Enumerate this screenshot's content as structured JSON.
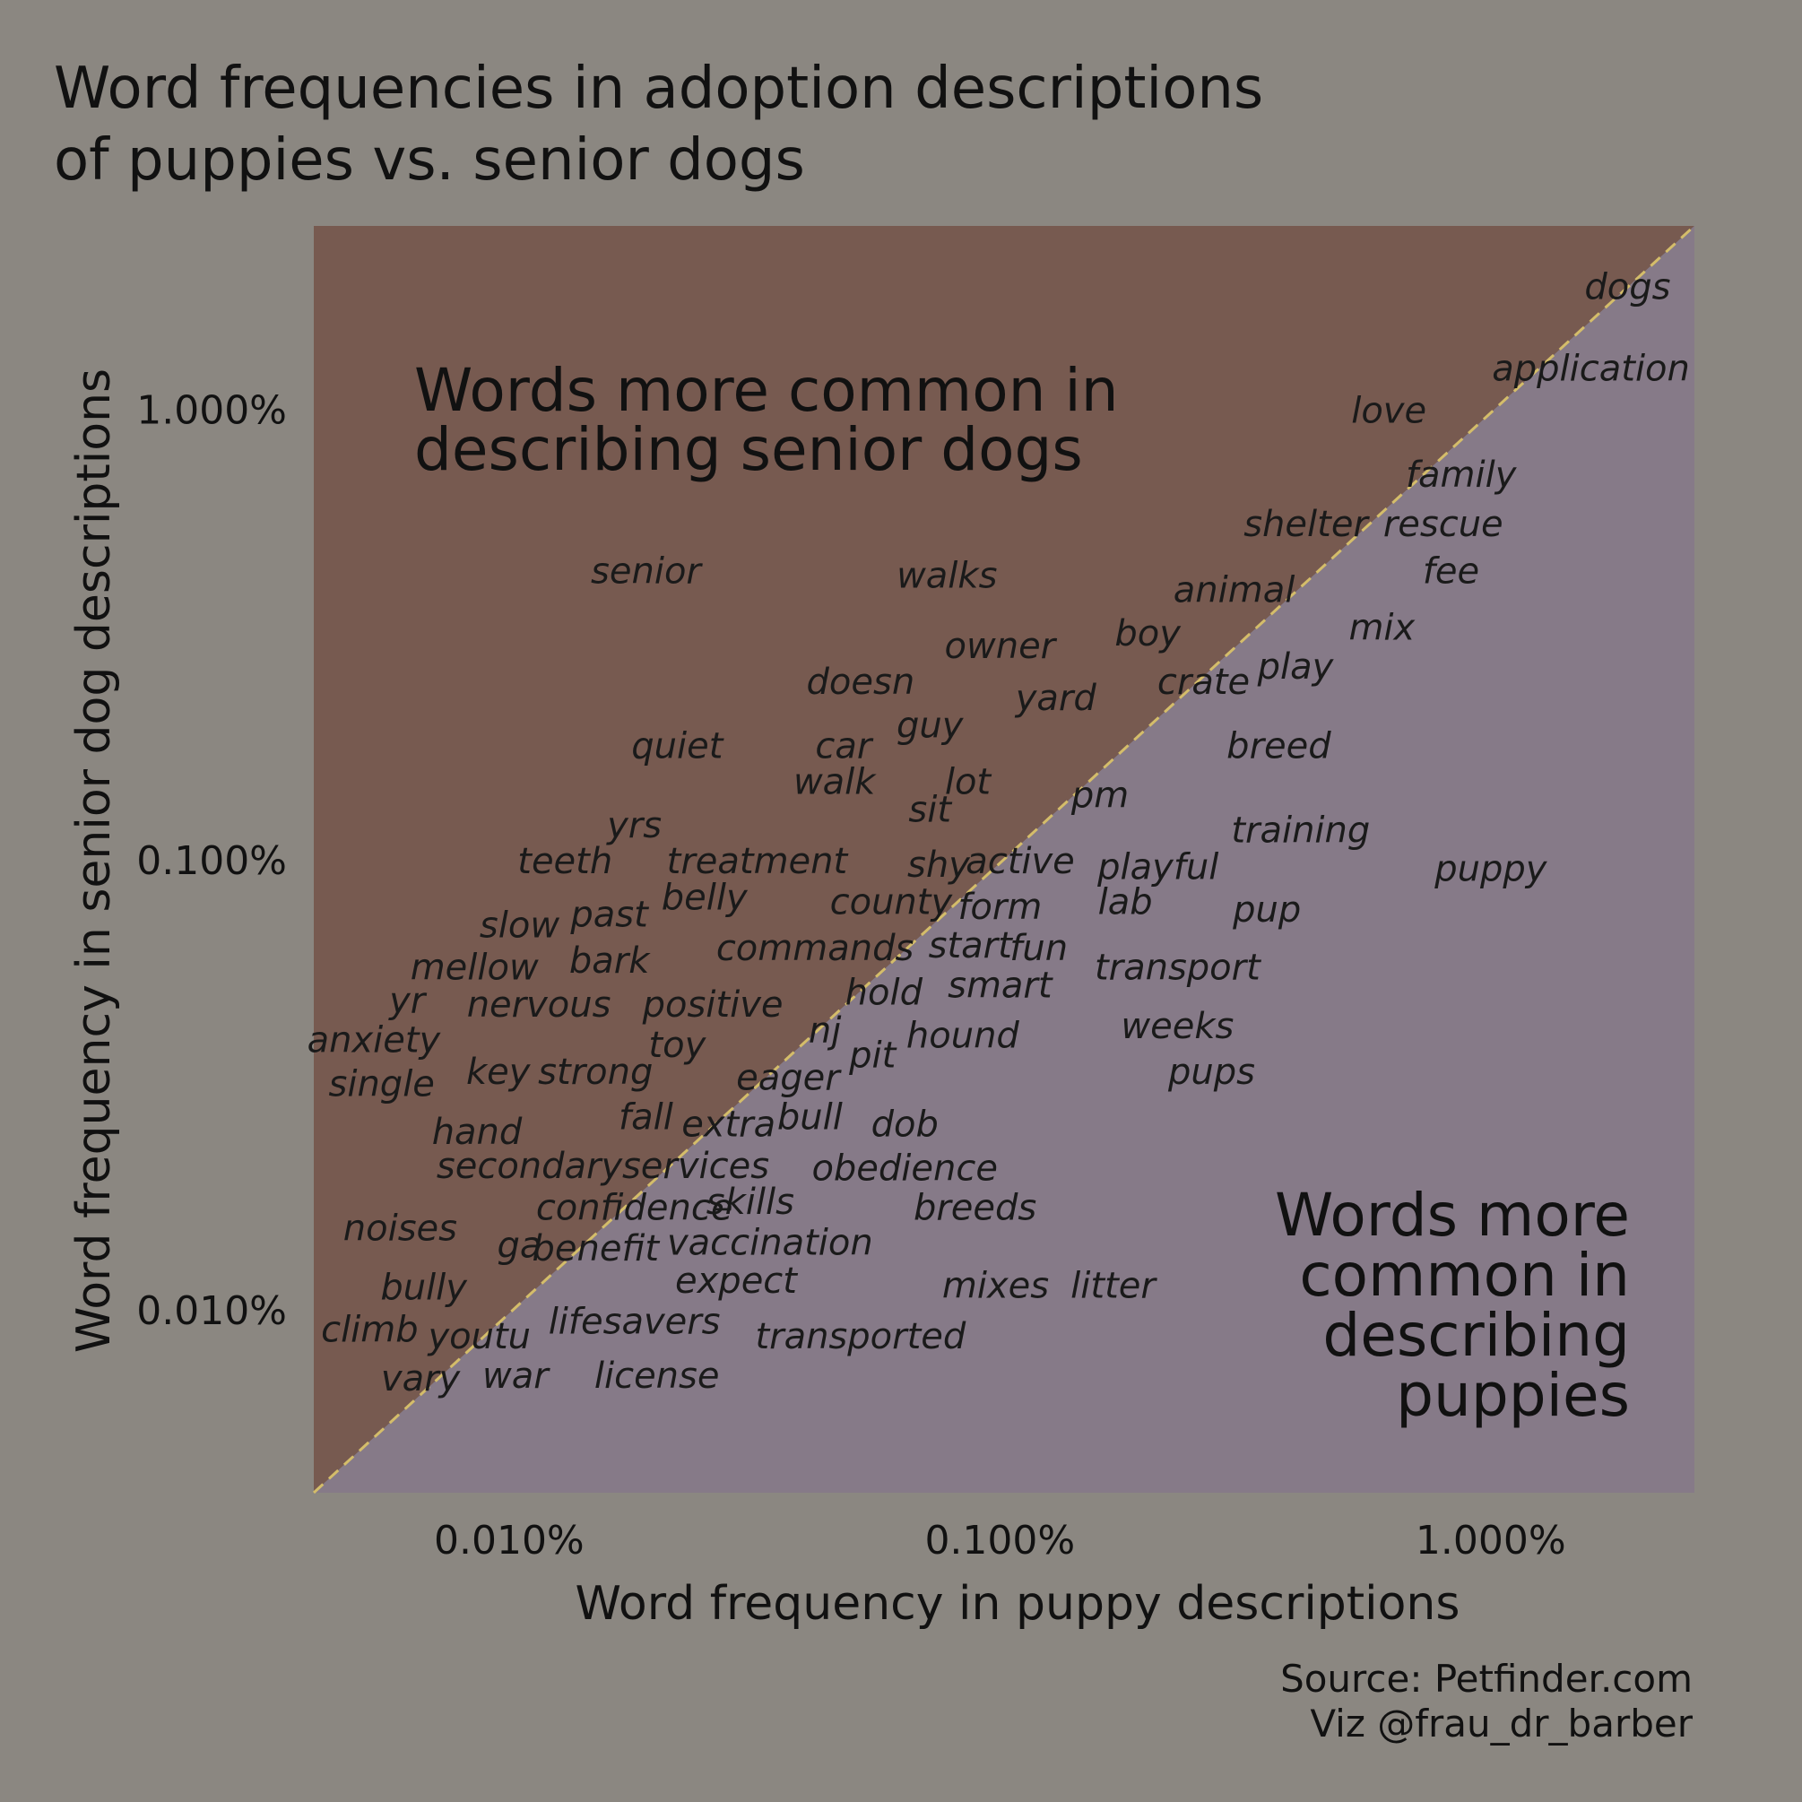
{
  "chart_data": {
    "type": "scatter",
    "title_lines": [
      "Word frequencies in adoption descriptions",
      "of puppies vs. senior dogs"
    ],
    "xlabel": "Word frequency in puppy descriptions",
    "ylabel": "Word frequency in senior dog descriptions",
    "x_scale": "log",
    "y_scale": "log",
    "xlim": [
      0.004,
      2.6
    ],
    "ylim": [
      0.004,
      2.6
    ],
    "xticks": [
      0.01,
      0.1,
      1.0
    ],
    "xtick_labels": [
      "0.010%",
      "0.100%",
      "1.000%"
    ],
    "yticks": [
      0.01,
      0.1,
      1.0
    ],
    "ytick_labels": [
      "0.010%",
      "0.100%",
      "1.000%"
    ],
    "units": "percent",
    "reference_line": "y = x",
    "region_senior_lines": [
      "Words more common in",
      "describing senior dogs"
    ],
    "region_puppy_lines": [
      "Words more",
      "common in",
      "describing",
      "puppies"
    ],
    "colors": {
      "background": "#8b8781",
      "senior_region": "#775a50",
      "puppy_region": "#867a88",
      "diagonal": "#d4bd6a",
      "text": "#111111"
    },
    "points": [
      {
        "word": "dogs",
        "x": 1.9,
        "y": 1.88
      },
      {
        "word": "application",
        "x": 1.6,
        "y": 1.24
      },
      {
        "word": "love",
        "x": 0.62,
        "y": 1.0
      },
      {
        "word": "family",
        "x": 0.87,
        "y": 0.72
      },
      {
        "word": "shelter",
        "x": 0.42,
        "y": 0.56
      },
      {
        "word": "rescue",
        "x": 0.8,
        "y": 0.56
      },
      {
        "word": "fee",
        "x": 0.83,
        "y": 0.44
      },
      {
        "word": "animal",
        "x": 0.3,
        "y": 0.4
      },
      {
        "word": "mix",
        "x": 0.6,
        "y": 0.33
      },
      {
        "word": "boy",
        "x": 0.2,
        "y": 0.32
      },
      {
        "word": "play",
        "x": 0.4,
        "y": 0.27
      },
      {
        "word": "crate",
        "x": 0.26,
        "y": 0.25
      },
      {
        "word": "walks",
        "x": 0.078,
        "y": 0.43
      },
      {
        "word": "owner",
        "x": 0.1,
        "y": 0.3
      },
      {
        "word": "doesn",
        "x": 0.052,
        "y": 0.25
      },
      {
        "word": "yard",
        "x": 0.13,
        "y": 0.23
      },
      {
        "word": "guy",
        "x": 0.072,
        "y": 0.2
      },
      {
        "word": "senior",
        "x": 0.019,
        "y": 0.44
      },
      {
        "word": "quiet",
        "x": 0.022,
        "y": 0.18
      },
      {
        "word": "car",
        "x": 0.048,
        "y": 0.18
      },
      {
        "word": "walk",
        "x": 0.046,
        "y": 0.15
      },
      {
        "word": "lot",
        "x": 0.086,
        "y": 0.15
      },
      {
        "word": "sit",
        "x": 0.072,
        "y": 0.13
      },
      {
        "word": "pm",
        "x": 0.16,
        "y": 0.14
      },
      {
        "word": "breed",
        "x": 0.37,
        "y": 0.18
      },
      {
        "word": "training",
        "x": 0.41,
        "y": 0.117
      },
      {
        "word": "puppy",
        "x": 1.0,
        "y": 0.096
      },
      {
        "word": "yrs",
        "x": 0.018,
        "y": 0.12
      },
      {
        "word": "teeth",
        "x": 0.013,
        "y": 0.1
      },
      {
        "word": "treatment",
        "x": 0.032,
        "y": 0.1
      },
      {
        "word": "shy",
        "x": 0.075,
        "y": 0.098
      },
      {
        "word": "active",
        "x": 0.11,
        "y": 0.1
      },
      {
        "word": "playful",
        "x": 0.21,
        "y": 0.097
      },
      {
        "word": "belly",
        "x": 0.025,
        "y": 0.083
      },
      {
        "word": "county",
        "x": 0.06,
        "y": 0.081
      },
      {
        "word": "form",
        "x": 0.1,
        "y": 0.079
      },
      {
        "word": "lab",
        "x": 0.18,
        "y": 0.081
      },
      {
        "word": "pup",
        "x": 0.35,
        "y": 0.078
      },
      {
        "word": "past",
        "x": 0.016,
        "y": 0.076
      },
      {
        "word": "slow",
        "x": 0.0105,
        "y": 0.072
      },
      {
        "word": "commands",
        "x": 0.042,
        "y": 0.064
      },
      {
        "word": "start",
        "x": 0.087,
        "y": 0.065
      },
      {
        "word": "fun",
        "x": 0.12,
        "y": 0.064
      },
      {
        "word": "mellow",
        "x": 0.0085,
        "y": 0.058
      },
      {
        "word": "bark",
        "x": 0.016,
        "y": 0.06
      },
      {
        "word": "transport",
        "x": 0.23,
        "y": 0.058
      },
      {
        "word": "yr",
        "x": 0.0062,
        "y": 0.049
      },
      {
        "word": "hold",
        "x": 0.058,
        "y": 0.051
      },
      {
        "word": "smart",
        "x": 0.1,
        "y": 0.053
      },
      {
        "word": "nervous",
        "x": 0.0115,
        "y": 0.048
      },
      {
        "word": "positive",
        "x": 0.026,
        "y": 0.048
      },
      {
        "word": "weeks",
        "x": 0.23,
        "y": 0.043
      },
      {
        "word": "anxiety",
        "x": 0.0053,
        "y": 0.04
      },
      {
        "word": "nj",
        "x": 0.044,
        "y": 0.042
      },
      {
        "word": "hound",
        "x": 0.084,
        "y": 0.041
      },
      {
        "word": "toy",
        "x": 0.022,
        "y": 0.039
      },
      {
        "word": "pit",
        "x": 0.055,
        "y": 0.037
      },
      {
        "word": "key",
        "x": 0.0095,
        "y": 0.034
      },
      {
        "word": "strong",
        "x": 0.015,
        "y": 0.034
      },
      {
        "word": "single",
        "x": 0.0055,
        "y": 0.032
      },
      {
        "word": "pups",
        "x": 0.27,
        "y": 0.034
      },
      {
        "word": "eager",
        "x": 0.037,
        "y": 0.033
      },
      {
        "word": "fall",
        "x": 0.019,
        "y": 0.027
      },
      {
        "word": "bull",
        "x": 0.041,
        "y": 0.027
      },
      {
        "word": "dob",
        "x": 0.064,
        "y": 0.026
      },
      {
        "word": "extra",
        "x": 0.028,
        "y": 0.026
      },
      {
        "word": "hand",
        "x": 0.0086,
        "y": 0.025
      },
      {
        "word": "secondary",
        "x": 0.011,
        "y": 0.021
      },
      {
        "word": "services",
        "x": 0.024,
        "y": 0.021
      },
      {
        "word": "obedience",
        "x": 0.064,
        "y": 0.0208
      },
      {
        "word": "confidence",
        "x": 0.018,
        "y": 0.017
      },
      {
        "word": "skills",
        "x": 0.031,
        "y": 0.0175
      },
      {
        "word": "breeds",
        "x": 0.089,
        "y": 0.017
      },
      {
        "word": "noises",
        "x": 0.006,
        "y": 0.0153
      },
      {
        "word": "ga",
        "x": 0.0105,
        "y": 0.014
      },
      {
        "word": "benefit",
        "x": 0.015,
        "y": 0.0138
      },
      {
        "word": "vaccination",
        "x": 0.034,
        "y": 0.0142
      },
      {
        "word": "expect",
        "x": 0.029,
        "y": 0.0117
      },
      {
        "word": "bully",
        "x": 0.0067,
        "y": 0.0113
      },
      {
        "word": "mixes",
        "x": 0.098,
        "y": 0.0114
      },
      {
        "word": "litter",
        "x": 0.17,
        "y": 0.0114
      },
      {
        "word": "lifesavers",
        "x": 0.018,
        "y": 0.0095
      },
      {
        "word": "climb",
        "x": 0.0052,
        "y": 0.0091
      },
      {
        "word": "youtu",
        "x": 0.0087,
        "y": 0.0088
      },
      {
        "word": "transported",
        "x": 0.052,
        "y": 0.0088
      },
      {
        "word": "vary",
        "x": 0.0066,
        "y": 0.0071
      },
      {
        "word": "war",
        "x": 0.0103,
        "y": 0.0072
      },
      {
        "word": "license",
        "x": 0.02,
        "y": 0.0072
      }
    ]
  },
  "source_lines": [
    "Source: Petfinder.com",
    "Viz @frau_dr_barber"
  ]
}
